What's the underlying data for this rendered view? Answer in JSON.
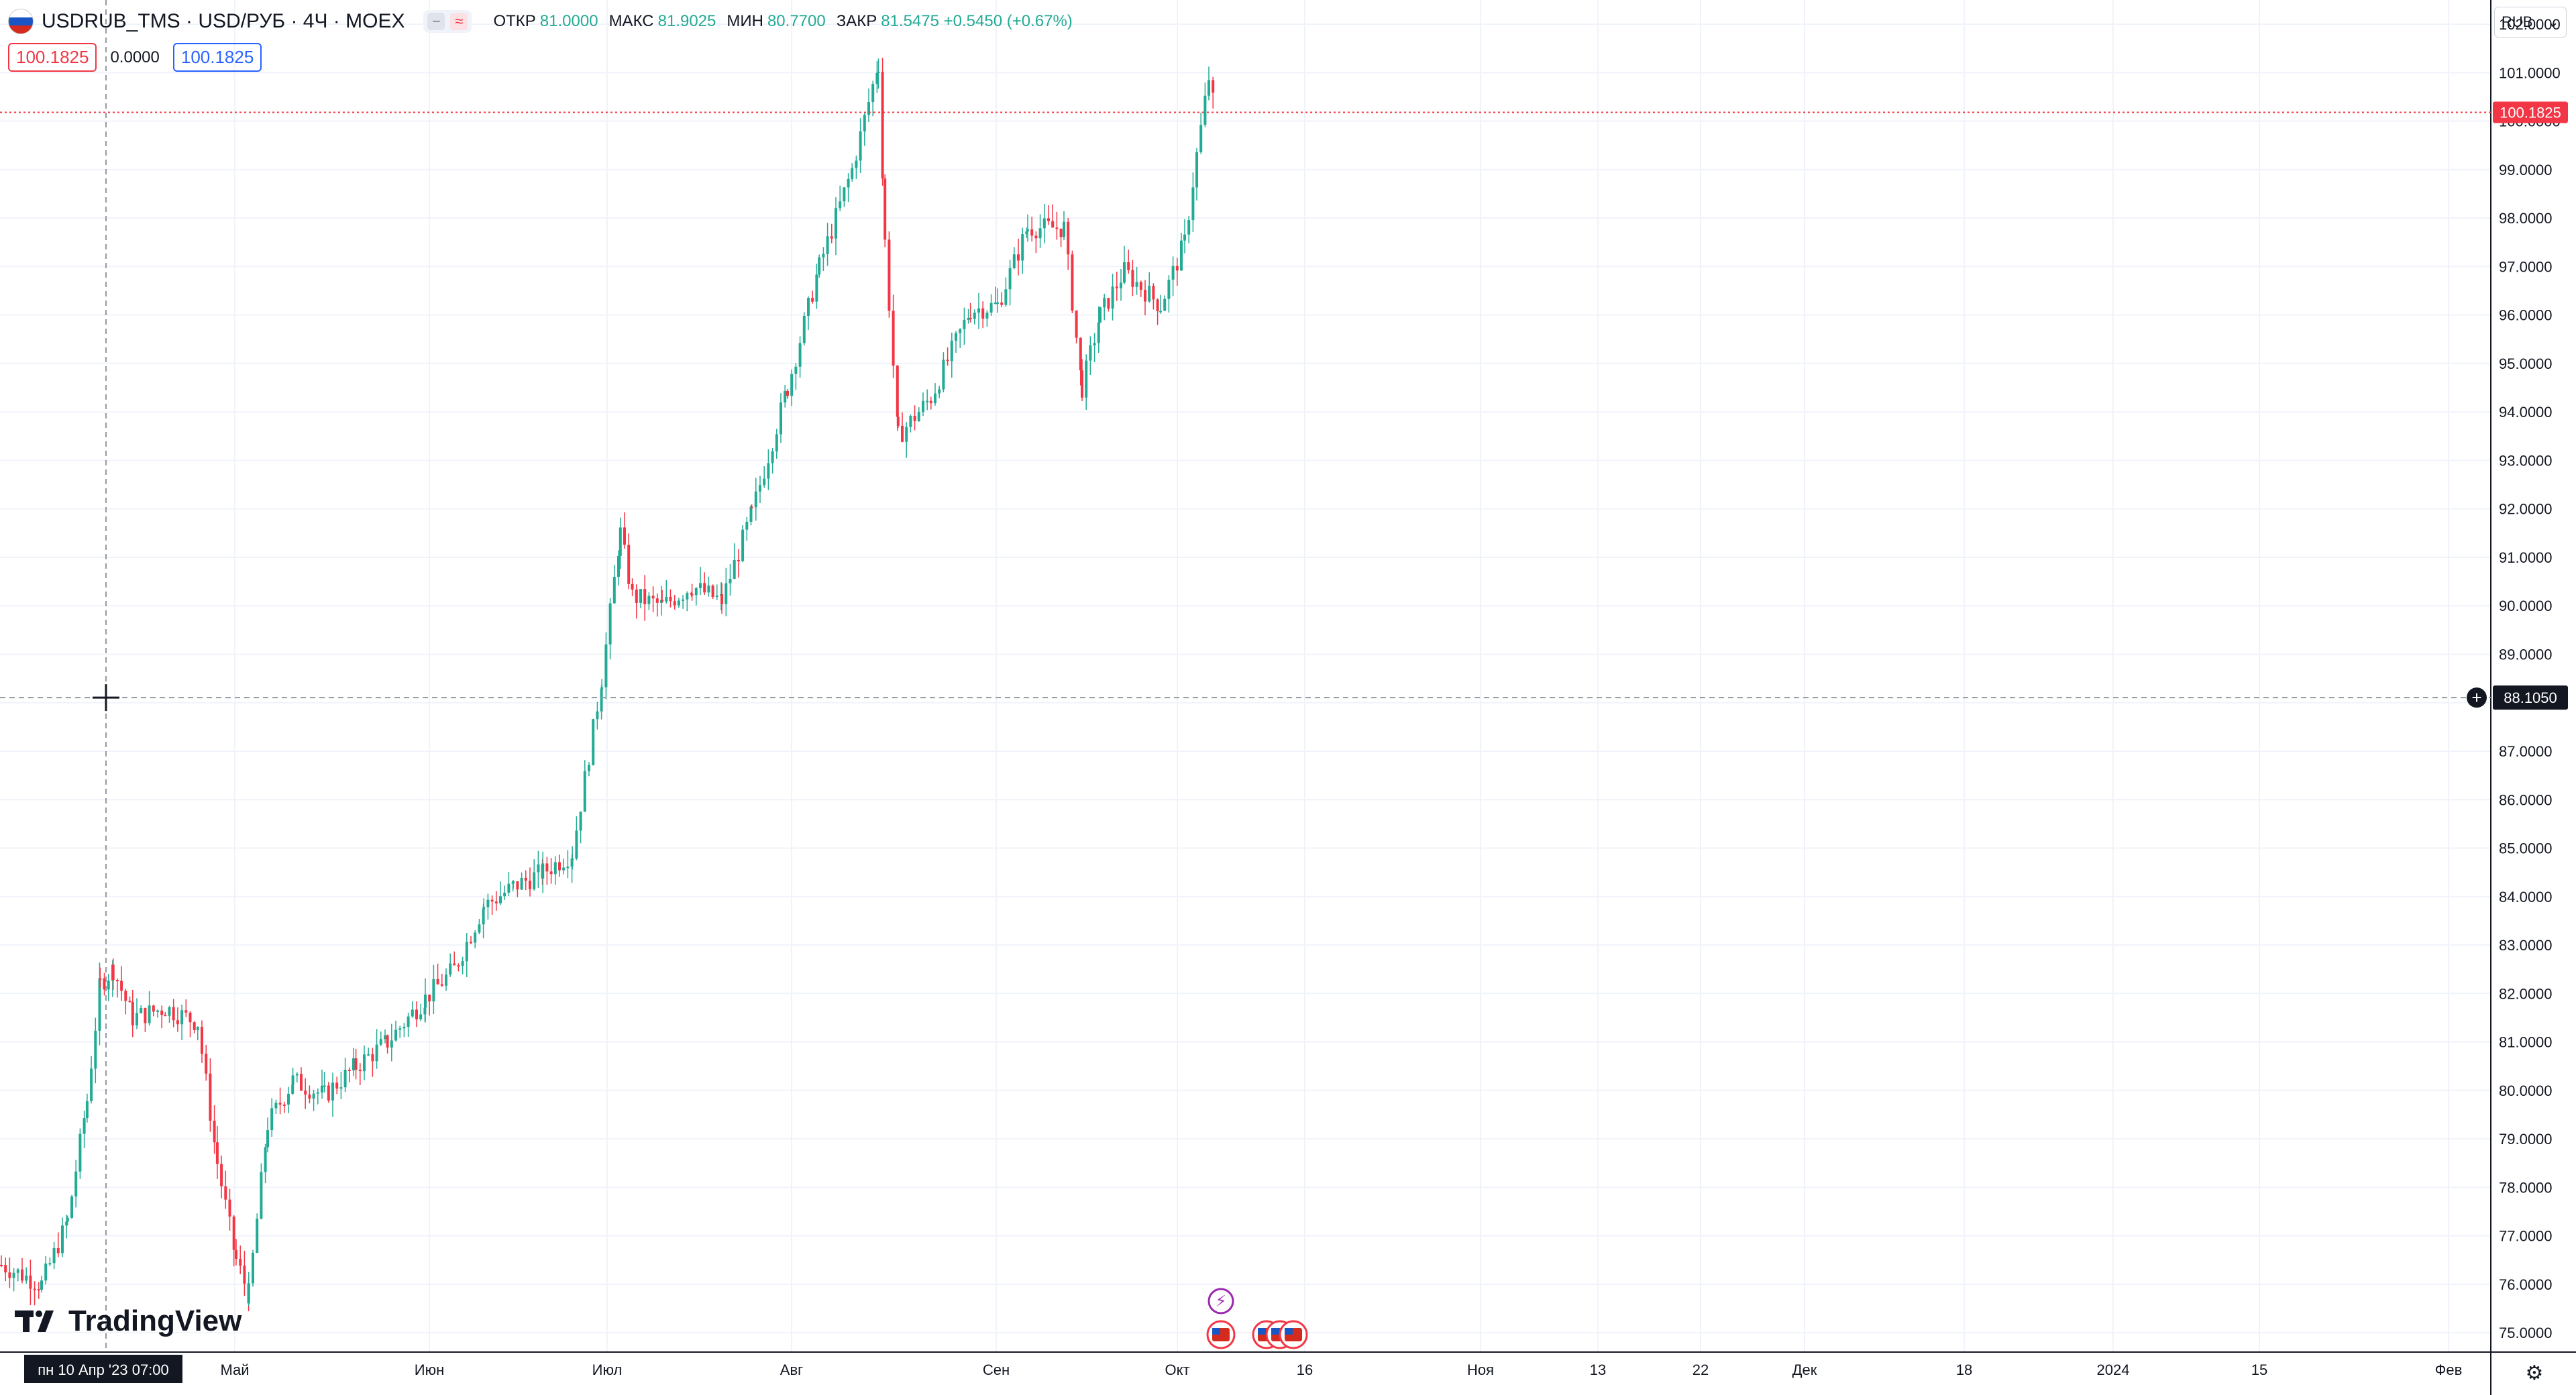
{
  "header": {
    "symbol_title": "USDRUB_TMS · USD/РУБ · 4Ч · MOEX",
    "ohlc": [
      {
        "k": "ОТКР",
        "v": "81.0000"
      },
      {
        "k": "МАКС",
        "v": "81.9025"
      },
      {
        "k": "МИН",
        "v": "80.7700"
      },
      {
        "k": "ЗАКР",
        "v": "81.5475 +0.5450 (+0.67%)"
      }
    ],
    "bid": "100.1825",
    "spread": "0.0000",
    "ask": "100.1825"
  },
  "currency_selector": "RUB",
  "logo_text": "TradingView",
  "colors": {
    "up": "#22ab94",
    "down": "#f23645",
    "grid": "#f0f3fa",
    "axis": "#131722"
  },
  "chart_data": {
    "type": "candlestick",
    "ylim": [
      74.6,
      102.5
    ],
    "y_ticks": [
      "75.0000",
      "76.0000",
      "77.0000",
      "78.0000",
      "79.0000",
      "80.0000",
      "81.0000",
      "82.0000",
      "83.0000",
      "84.0000",
      "85.0000",
      "86.0000",
      "87.0000",
      "88.0000",
      "89.0000",
      "90.0000",
      "91.0000",
      "92.0000",
      "93.0000",
      "94.0000",
      "95.0000",
      "96.0000",
      "97.0000",
      "98.0000",
      "99.0000",
      "100.0000",
      "101.0000",
      "102.0000"
    ],
    "x_ticks": [
      "Май",
      "Июн",
      "Июл",
      "Авг",
      "Сен",
      "Окт",
      "16",
      "Ноя",
      "13",
      "22",
      "Дек",
      "18",
      "2024",
      "15",
      "Фев"
    ],
    "last_price": "100.1825",
    "crosshair_price": "88.1050",
    "crosshair_time": "пн 10 Апр '23   07:00",
    "close_path": [
      [
        "Апр 1",
        76.0
      ],
      [
        "Апр 5",
        77.3
      ],
      [
        "Апр 8",
        79.8
      ],
      [
        "Апр 10",
        82.2
      ],
      [
        "Апр 12",
        82.5
      ],
      [
        "Апр 15",
        81.5
      ],
      [
        "Апр 20",
        81.7
      ],
      [
        "Апр 25",
        81.4
      ],
      [
        "Апр 28",
        78.5
      ],
      [
        "Май 1",
        76.5
      ],
      [
        "Май 3",
        75.8
      ],
      [
        "Май 6",
        79.3
      ],
      [
        "Май 10",
        80.2
      ],
      [
        "Май 15",
        79.9
      ],
      [
        "Май 20",
        80.5
      ],
      [
        "Май 25",
        81.0
      ],
      [
        "Май 31",
        81.9
      ],
      [
        "Июн 5",
        82.5
      ],
      [
        "Июн 10",
        83.8
      ],
      [
        "Июн 15",
        84.2
      ],
      [
        "Июн 20",
        84.5
      ],
      [
        "Июн 25",
        84.9
      ],
      [
        "Июн 30",
        88.5
      ],
      [
        "Июл 3",
        91.5
      ],
      [
        "Июл 5",
        90.2
      ],
      [
        "Июл 10",
        90.0
      ],
      [
        "Июл 15",
        90.4
      ],
      [
        "Июл 20",
        90.1
      ],
      [
        "Июл 25",
        91.9
      ],
      [
        "Июл 31",
        94.5
      ],
      [
        "Авг 5",
        97.0
      ],
      [
        "Авг 10",
        99.0
      ],
      [
        "Авг 14",
        101.2
      ],
      [
        "Авг 15",
        97.5
      ],
      [
        "Авг 17",
        93.5
      ],
      [
        "Авг 22",
        94.3
      ],
      [
        "Авг 28",
        96.1
      ],
      [
        "Сен 1",
        96.2
      ],
      [
        "Сен 6",
        97.8
      ],
      [
        "Сен 12",
        97.8
      ],
      [
        "Сен 15",
        94.5
      ],
      [
        "Сен 18",
        96.0
      ],
      [
        "Сен 22",
        96.9
      ],
      [
        "Сен 28",
        96.2
      ],
      [
        "Окт 2",
        97.5
      ],
      [
        "Окт 4",
        99.3
      ],
      [
        "Окт 6",
        100.9
      ],
      [
        "Окт 7",
        100.18
      ]
    ]
  },
  "events": {
    "flash_icon": "lightning-icon",
    "flag_icon": "us-flag-icon"
  }
}
